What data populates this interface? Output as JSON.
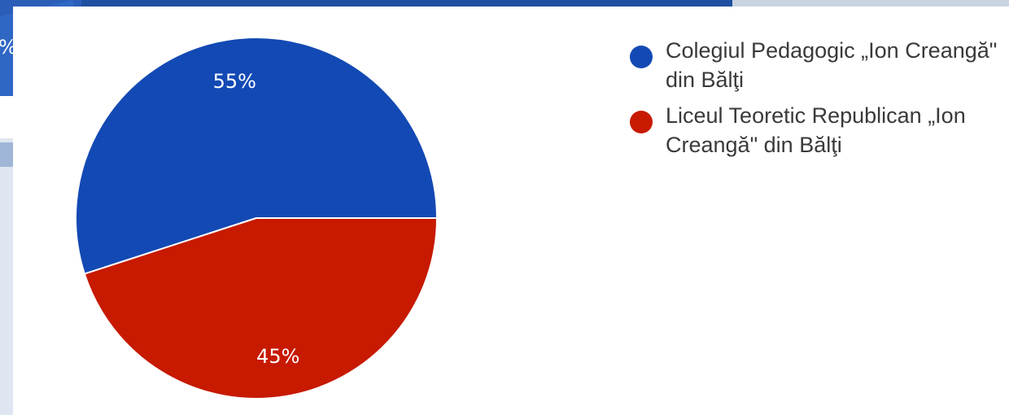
{
  "chart_data": {
    "type": "pie",
    "title": "",
    "slices": [
      {
        "label": "Colegiul Pedagogic „Ion Creangă\" din Bălţi",
        "value": 55,
        "value_label": "55%",
        "color": "#1349b4"
      },
      {
        "label": "Liceul Teoretic Republican „Ion Creangă\" din Bălţi",
        "value": 45,
        "value_label": "45%",
        "color": "#c71a00"
      }
    ],
    "legend_position": "right"
  },
  "background_fragment": {
    "text": "%"
  }
}
